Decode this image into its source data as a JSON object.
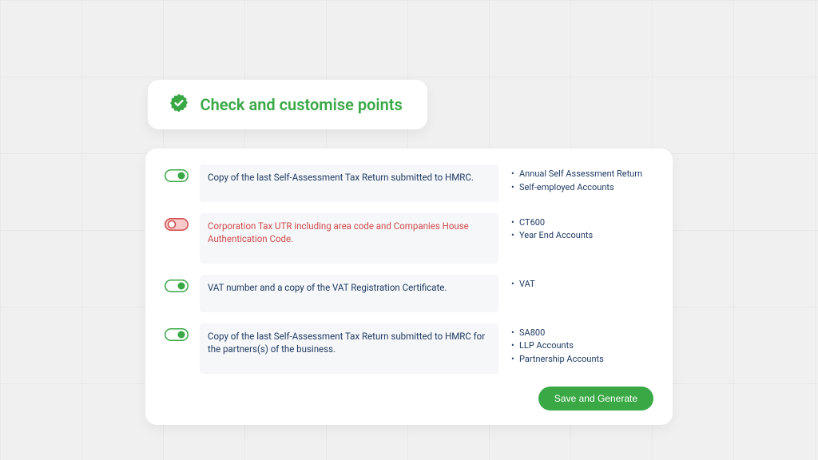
{
  "colors": {
    "page_bg": "#f0f0f0",
    "grid_line": "#e8e8e8",
    "card_bg": "#ffffff",
    "primary_green": "#39a845",
    "toggle_on_fill": "#39a845",
    "toggle_on_track": "#ffffff",
    "toggle_on_border": "#39a845",
    "toggle_off_fill": "#ffffff",
    "toggle_off_track": "#f7c9c9",
    "toggle_off_border": "#d24a4a",
    "text_navy": "#1f3b63",
    "text_red": "#cf4a4a",
    "desc_bg": "#f6f7f9",
    "white": "#ffffff"
  },
  "header": {
    "title": "Check and customise points",
    "icon": "seal-check"
  },
  "rows": [
    {
      "enabled": true,
      "description": "Copy of the last Self-Assessment Tax Return submitted to HMRC.",
      "tags": [
        "Annual Self Assessment Return",
        "Self-employed Accounts"
      ]
    },
    {
      "enabled": false,
      "description": "Corporation Tax UTR including area code and Companies House Authentication Code.",
      "tags": [
        "CT600",
        "Year End Accounts"
      ]
    },
    {
      "enabled": true,
      "description": "VAT number and a copy of the VAT Registration Certificate.",
      "tags": [
        "VAT"
      ]
    },
    {
      "enabled": true,
      "description": "Copy of the last Self-Assessment Tax Return submitted to HMRC for the partners(s) of the business.",
      "tags": [
        "SA800",
        "LLP Accounts",
        "Partnership Accounts"
      ]
    }
  ],
  "footer": {
    "save_label": "Save and Generate"
  }
}
